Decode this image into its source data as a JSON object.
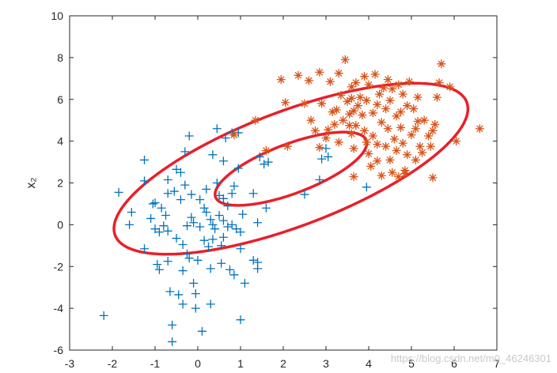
{
  "chart_data": {
    "type": "scatter",
    "title": "",
    "xlabel": "",
    "ylabel": "x₂",
    "xlim": [
      -3,
      7
    ],
    "ylim": [
      -6,
      10
    ],
    "xticks": [
      -3,
      -2,
      -1,
      0,
      1,
      2,
      3,
      4,
      5,
      6,
      7
    ],
    "yticks": [
      -6,
      -4,
      -2,
      0,
      2,
      4,
      6,
      8,
      10
    ],
    "grid": false,
    "colors": {
      "class1": "#0072BD",
      "class2": "#D95319",
      "ellipse": "#E8202A"
    },
    "series": [
      {
        "marker": "plus",
        "color": "#0072BD",
        "points": [
          [
            -2.2,
            -4.35
          ],
          [
            -1.85,
            1.55
          ],
          [
            -1.6,
            0.0
          ],
          [
            -1.55,
            0.6
          ],
          [
            -1.25,
            3.1
          ],
          [
            -1.25,
            2.1
          ],
          [
            -1.25,
            -1.15
          ],
          [
            -1.1,
            0.3
          ],
          [
            -1.05,
            1.0
          ],
          [
            -1.0,
            1.05
          ],
          [
            -1.0,
            -0.2
          ],
          [
            -0.95,
            -1.9
          ],
          [
            -0.9,
            -2.15
          ],
          [
            -0.9,
            -0.35
          ],
          [
            -0.85,
            0.8
          ],
          [
            -0.8,
            -0.05
          ],
          [
            -0.75,
            0.45
          ],
          [
            -0.7,
            2.15
          ],
          [
            -0.7,
            1.5
          ],
          [
            -0.7,
            -0.3
          ],
          [
            -0.7,
            -1.75
          ],
          [
            -0.65,
            -3.2
          ],
          [
            -0.6,
            -5.6
          ],
          [
            -0.6,
            -4.8
          ],
          [
            -0.55,
            1.6
          ],
          [
            -0.5,
            2.65
          ],
          [
            -0.5,
            -0.65
          ],
          [
            -0.45,
            -3.35
          ],
          [
            -0.4,
            2.5
          ],
          [
            -0.4,
            1.2
          ],
          [
            -0.35,
            -0.95
          ],
          [
            -0.35,
            -2.2
          ],
          [
            -0.35,
            -3.8
          ],
          [
            -0.3,
            3.5
          ],
          [
            -0.3,
            1.9
          ],
          [
            -0.25,
            -0.05
          ],
          [
            -0.25,
            -1.4
          ],
          [
            -0.2,
            4.25
          ],
          [
            -0.2,
            -1.6
          ],
          [
            -0.15,
            1.45
          ],
          [
            -0.15,
            0.35
          ],
          [
            -0.1,
            0.1
          ],
          [
            -0.1,
            -2.8
          ],
          [
            -0.05,
            -3.3
          ],
          [
            -0.05,
            -4.0
          ],
          [
            0.0,
            -1.7
          ],
          [
            0.05,
            1.2
          ],
          [
            0.05,
            -0.1
          ],
          [
            0.1,
            -5.1
          ],
          [
            0.15,
            0.8
          ],
          [
            0.15,
            -0.75
          ],
          [
            0.2,
            1.7
          ],
          [
            0.2,
            0.6
          ],
          [
            0.25,
            -1.05
          ],
          [
            0.3,
            0.25
          ],
          [
            0.3,
            -2.1
          ],
          [
            0.3,
            -3.8
          ],
          [
            0.35,
            3.35
          ],
          [
            0.35,
            0.0
          ],
          [
            0.35,
            -0.7
          ],
          [
            0.4,
            -0.2
          ],
          [
            0.45,
            4.6
          ],
          [
            0.45,
            2.0
          ],
          [
            0.5,
            1.4
          ],
          [
            0.5,
            0.45
          ],
          [
            0.55,
            -1.0
          ],
          [
            0.55,
            -1.85
          ],
          [
            0.6,
            3.05
          ],
          [
            0.6,
            1.25
          ],
          [
            0.6,
            0.2
          ],
          [
            0.6,
            -0.6
          ],
          [
            0.65,
            4.15
          ],
          [
            0.7,
            0.9
          ],
          [
            0.7,
            -0.1
          ],
          [
            0.75,
            -2.15
          ],
          [
            0.8,
            4.4
          ],
          [
            0.8,
            1.5
          ],
          [
            0.8,
            0.0
          ],
          [
            0.85,
            1.85
          ],
          [
            0.85,
            -2.4
          ],
          [
            0.9,
            -0.2
          ],
          [
            0.95,
            4.4
          ],
          [
            0.95,
            2.7
          ],
          [
            1.0,
            -0.35
          ],
          [
            1.0,
            -4.55
          ],
          [
            1.0,
            -1.15
          ],
          [
            1.05,
            0.5
          ],
          [
            1.1,
            -2.8
          ],
          [
            1.3,
            1.5
          ],
          [
            1.3,
            -1.7
          ],
          [
            1.4,
            0.1
          ],
          [
            1.4,
            -1.8
          ],
          [
            1.4,
            -2.1
          ],
          [
            1.45,
            3.25
          ],
          [
            1.55,
            2.9
          ],
          [
            1.6,
            0.8
          ],
          [
            1.65,
            3.0
          ],
          [
            2.5,
            1.45
          ],
          [
            2.85,
            2.15
          ],
          [
            2.9,
            3.15
          ],
          [
            3.0,
            3.65
          ],
          [
            3.05,
            3.25
          ],
          [
            3.95,
            1.8
          ]
        ]
      },
      {
        "marker": "asterisk",
        "color": "#D95319",
        "points": [
          [
            0.85,
            4.3
          ],
          [
            1.35,
            5.0
          ],
          [
            1.6,
            3.55
          ],
          [
            1.95,
            6.95
          ],
          [
            2.05,
            5.85
          ],
          [
            2.1,
            3.75
          ],
          [
            2.35,
            7.15
          ],
          [
            2.5,
            5.8
          ],
          [
            2.6,
            6.9
          ],
          [
            2.65,
            5.0
          ],
          [
            2.75,
            4.5
          ],
          [
            2.85,
            3.7
          ],
          [
            2.85,
            7.3
          ],
          [
            2.9,
            5.8
          ],
          [
            3.0,
            4.15
          ],
          [
            3.05,
            4.55
          ],
          [
            3.1,
            6.85
          ],
          [
            3.15,
            5.4
          ],
          [
            3.2,
            4.8
          ],
          [
            3.25,
            5.5
          ],
          [
            3.3,
            7.25
          ],
          [
            3.3,
            3.95
          ],
          [
            3.35,
            6.2
          ],
          [
            3.4,
            5.0
          ],
          [
            3.45,
            7.9
          ],
          [
            3.5,
            5.9
          ],
          [
            3.55,
            5.3
          ],
          [
            3.55,
            4.75
          ],
          [
            3.6,
            6.6
          ],
          [
            3.6,
            6.05
          ],
          [
            3.6,
            4.35
          ],
          [
            3.65,
            5.45
          ],
          [
            3.65,
            3.65
          ],
          [
            3.65,
            2.3
          ],
          [
            3.7,
            6.8
          ],
          [
            3.7,
            4.75
          ],
          [
            3.75,
            5.7
          ],
          [
            3.8,
            6.1
          ],
          [
            3.85,
            5.25
          ],
          [
            3.9,
            7.1
          ],
          [
            3.9,
            4.5
          ],
          [
            3.95,
            5.95
          ],
          [
            3.95,
            3.95
          ],
          [
            4.0,
            6.7
          ],
          [
            4.0,
            3.4
          ],
          [
            4.05,
            2.8
          ],
          [
            4.1,
            5.35
          ],
          [
            4.1,
            4.25
          ],
          [
            4.15,
            7.2
          ],
          [
            4.2,
            5.75
          ],
          [
            4.2,
            3.85
          ],
          [
            4.2,
            3.05
          ],
          [
            4.25,
            6.25
          ],
          [
            4.3,
            4.9
          ],
          [
            4.3,
            2.35
          ],
          [
            4.35,
            6.55
          ],
          [
            4.4,
            5.55
          ],
          [
            4.4,
            3.75
          ],
          [
            4.45,
            6.95
          ],
          [
            4.45,
            4.6
          ],
          [
            4.5,
            5.95
          ],
          [
            4.5,
            3.1
          ],
          [
            4.55,
            6.5
          ],
          [
            4.55,
            2.5
          ],
          [
            4.6,
            4.1
          ],
          [
            4.65,
            5.2
          ],
          [
            4.65,
            3.55
          ],
          [
            4.7,
            6.7
          ],
          [
            4.7,
            2.3
          ],
          [
            4.75,
            5.4
          ],
          [
            4.75,
            4.65
          ],
          [
            4.8,
            6.25
          ],
          [
            4.8,
            3.9
          ],
          [
            4.85,
            2.6
          ],
          [
            4.85,
            2.45
          ],
          [
            4.9,
            5.7
          ],
          [
            4.9,
            3.35
          ],
          [
            4.95,
            6.85
          ],
          [
            5.0,
            4.3
          ],
          [
            5.05,
            5.55
          ],
          [
            5.1,
            4.6
          ],
          [
            5.1,
            3.1
          ],
          [
            5.15,
            6.1
          ],
          [
            5.15,
            4.95
          ],
          [
            5.2,
            3.75
          ],
          [
            5.25,
            3.45
          ],
          [
            5.3,
            5.0
          ],
          [
            5.4,
            4.25
          ],
          [
            5.45,
            3.75
          ],
          [
            5.5,
            2.25
          ],
          [
            5.5,
            4.5
          ],
          [
            5.55,
            4.8
          ],
          [
            5.6,
            6.1
          ],
          [
            5.65,
            6.8
          ],
          [
            5.7,
            7.7
          ],
          [
            5.9,
            6.6
          ],
          [
            6.05,
            4.0
          ],
          [
            6.6,
            4.6
          ]
        ]
      }
    ],
    "ellipses": [
      {
        "center": [
          2.18,
          2.68
        ],
        "a": 5.37,
        "b": 2.25,
        "angle_deg": 44.5
      },
      {
        "center": [
          2.18,
          2.68
        ],
        "a": 2.3,
        "b": 0.97,
        "angle_deg": 44.5
      }
    ]
  },
  "watermark": "https://blog.csdn.net/m0_46246301"
}
